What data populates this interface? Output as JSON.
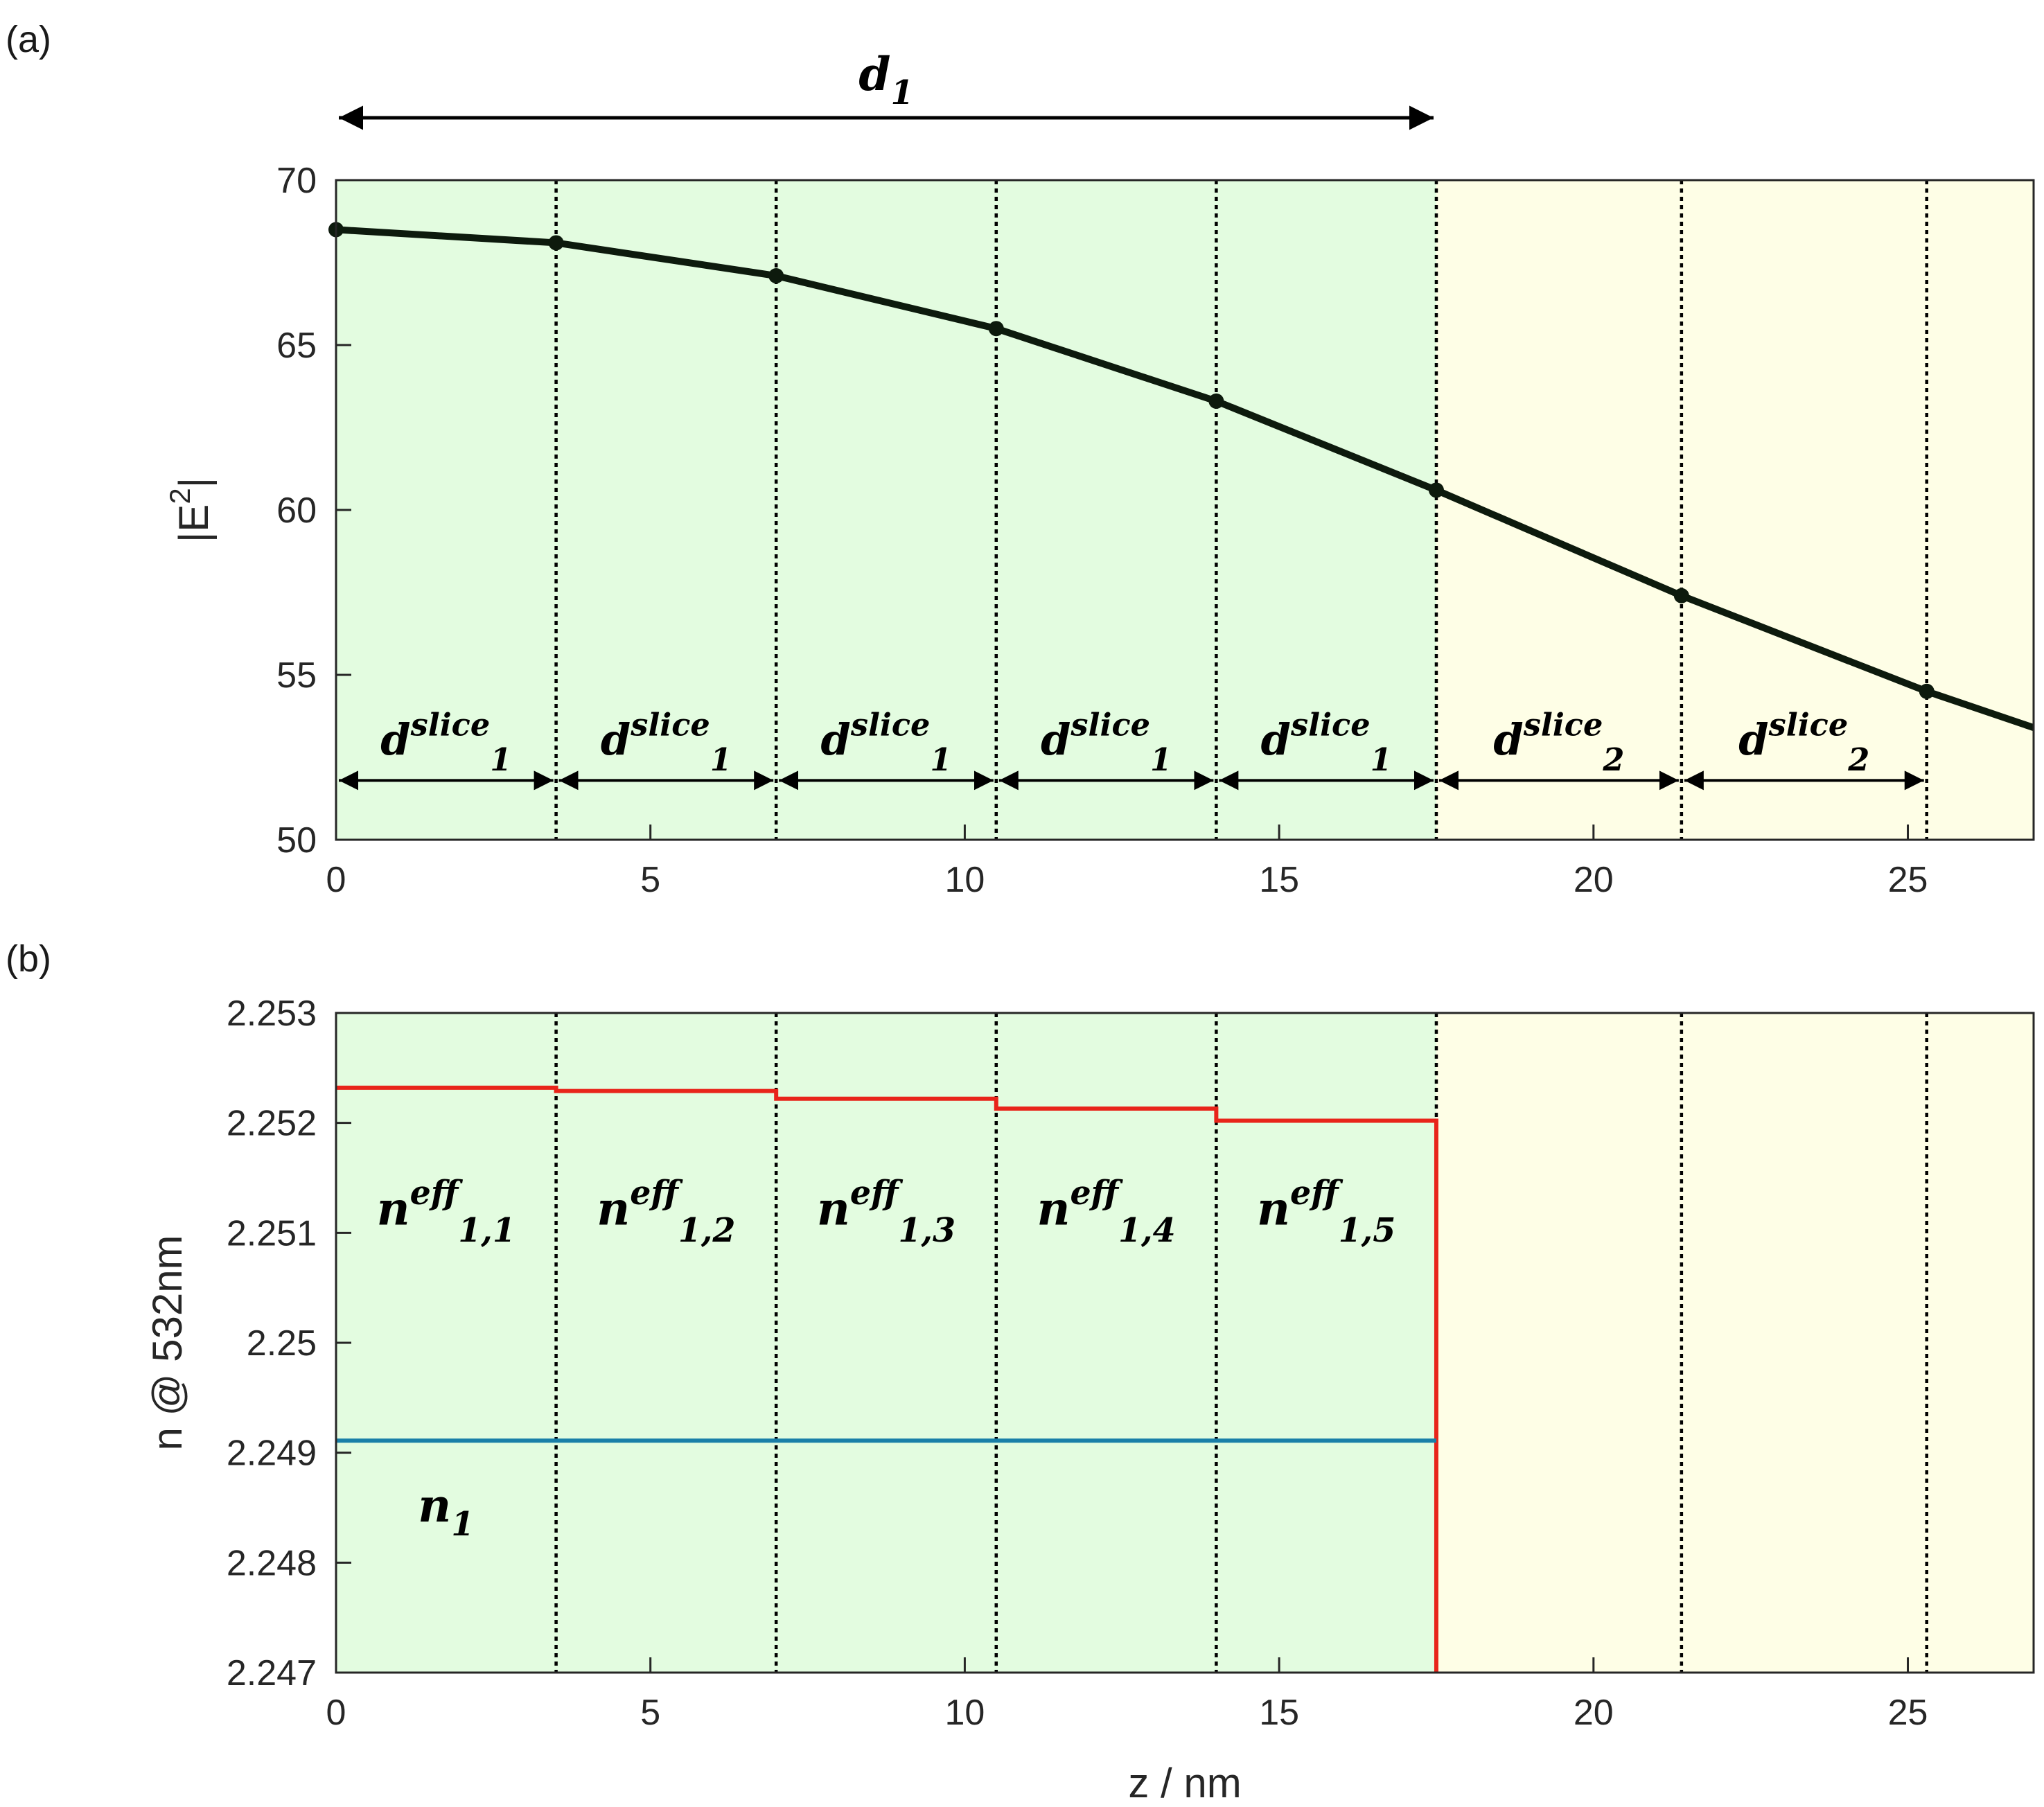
{
  "chart_data": [
    {
      "panel_label": "(a)",
      "type": "line",
      "ylabel_base": "|E",
      "ylabel_sup": "2",
      "ylabel_end": "|",
      "xlim": [
        0,
        27
      ],
      "ylim": [
        50,
        70
      ],
      "xticks": [
        0,
        5,
        10,
        15,
        20,
        25
      ],
      "yticks": [
        50,
        55,
        60,
        65,
        70
      ],
      "regions": [
        {
          "from": 0,
          "to": 17.5,
          "color": "#e3fce0"
        },
        {
          "from": 17.5,
          "to": 27,
          "color": "#fefee6"
        }
      ],
      "boundaries": [
        3.5,
        7,
        10.5,
        14,
        17.5,
        21.4,
        25.3
      ],
      "series": [
        {
          "color": "#000000",
          "x": [
            0,
            3.5,
            7,
            10.5,
            14,
            17.5,
            21.4,
            25.3,
            27
          ],
          "y": [
            68.5,
            68.1,
            67.1,
            65.5,
            63.3,
            60.6,
            57.4,
            54.5,
            53.4
          ],
          "markers": [
            0,
            3.5,
            7,
            10.5,
            14,
            17.5,
            21.4,
            25.3
          ]
        }
      ],
      "annotations": {
        "top_arrow": {
          "from": 0,
          "to": 17.5,
          "label_base": "d",
          "label_sub": "1"
        },
        "slice_arrows": [
          {
            "from": 0,
            "to": 3.5,
            "label_base": "d",
            "label_sub": "1",
            "label_sup": "slice"
          },
          {
            "from": 3.5,
            "to": 7,
            "label_base": "d",
            "label_sub": "1",
            "label_sup": "slice"
          },
          {
            "from": 7,
            "to": 10.5,
            "label_base": "d",
            "label_sub": "1",
            "label_sup": "slice"
          },
          {
            "from": 10.5,
            "to": 14,
            "label_base": "d",
            "label_sub": "1",
            "label_sup": "slice"
          },
          {
            "from": 14,
            "to": 17.5,
            "label_base": "d",
            "label_sub": "1",
            "label_sup": "slice"
          },
          {
            "from": 17.5,
            "to": 21.4,
            "label_base": "d",
            "label_sub": "2",
            "label_sup": "slice"
          },
          {
            "from": 21.4,
            "to": 25.3,
            "label_base": "d",
            "label_sub": "2",
            "label_sup": "slice"
          }
        ],
        "slice_arrow_y": 51.8,
        "slice_label_y": 53.0
      }
    },
    {
      "panel_label": "(b)",
      "type": "line",
      "xlabel": "z / nm",
      "ylabel": "n @ 532nm",
      "xlim": [
        0,
        27
      ],
      "ylim": [
        2.247,
        2.253
      ],
      "xticks": [
        0,
        5,
        10,
        15,
        20,
        25
      ],
      "yticks": [
        2.247,
        2.248,
        2.249,
        2.25,
        2.251,
        2.252,
        2.253
      ],
      "ytick_labels": [
        "2.247",
        "2.248",
        "2.249",
        "2.25",
        "2.251",
        "2.252",
        "2.253"
      ],
      "regions": [
        {
          "from": 0,
          "to": 17.5,
          "color": "#e3fce0"
        },
        {
          "from": 17.5,
          "to": 27,
          "color": "#fefee6"
        }
      ],
      "boundaries": [
        3.5,
        7,
        10.5,
        14,
        17.5,
        21.4,
        25.3
      ],
      "series": [
        {
          "color": "#e8241a",
          "steps": [
            {
              "from": 0,
              "to": 3.5,
              "y": 2.25232
            },
            {
              "from": 3.5,
              "to": 7,
              "y": 2.25229
            },
            {
              "from": 7,
              "to": 10.5,
              "y": 2.25222
            },
            {
              "from": 10.5,
              "to": 14,
              "y": 2.25213
            },
            {
              "from": 14,
              "to": 17.5,
              "y": 2.25202
            }
          ],
          "drop_to": 2.247
        },
        {
          "color": "#1a7fa8",
          "steps": [
            {
              "from": 0,
              "to": 17.5,
              "y": 2.24911
            }
          ]
        }
      ],
      "annotations": {
        "eff_labels": [
          {
            "x": 1.75,
            "label_base": "n",
            "label_sub": "1,1",
            "label_sup": "eff"
          },
          {
            "x": 5.25,
            "label_base": "n",
            "label_sub": "1,2",
            "label_sup": "eff"
          },
          {
            "x": 8.75,
            "label_base": "n",
            "label_sub": "1,3",
            "label_sup": "eff"
          },
          {
            "x": 12.25,
            "label_base": "n",
            "label_sub": "1,4",
            "label_sup": "eff"
          },
          {
            "x": 15.75,
            "label_base": "n",
            "label_sub": "1,5",
            "label_sup": "eff"
          }
        ],
        "eff_label_y": 2.2512,
        "n1_label": {
          "x": 1.75,
          "y": 2.2485,
          "label_base": "n",
          "label_sub": "1"
        }
      }
    }
  ]
}
